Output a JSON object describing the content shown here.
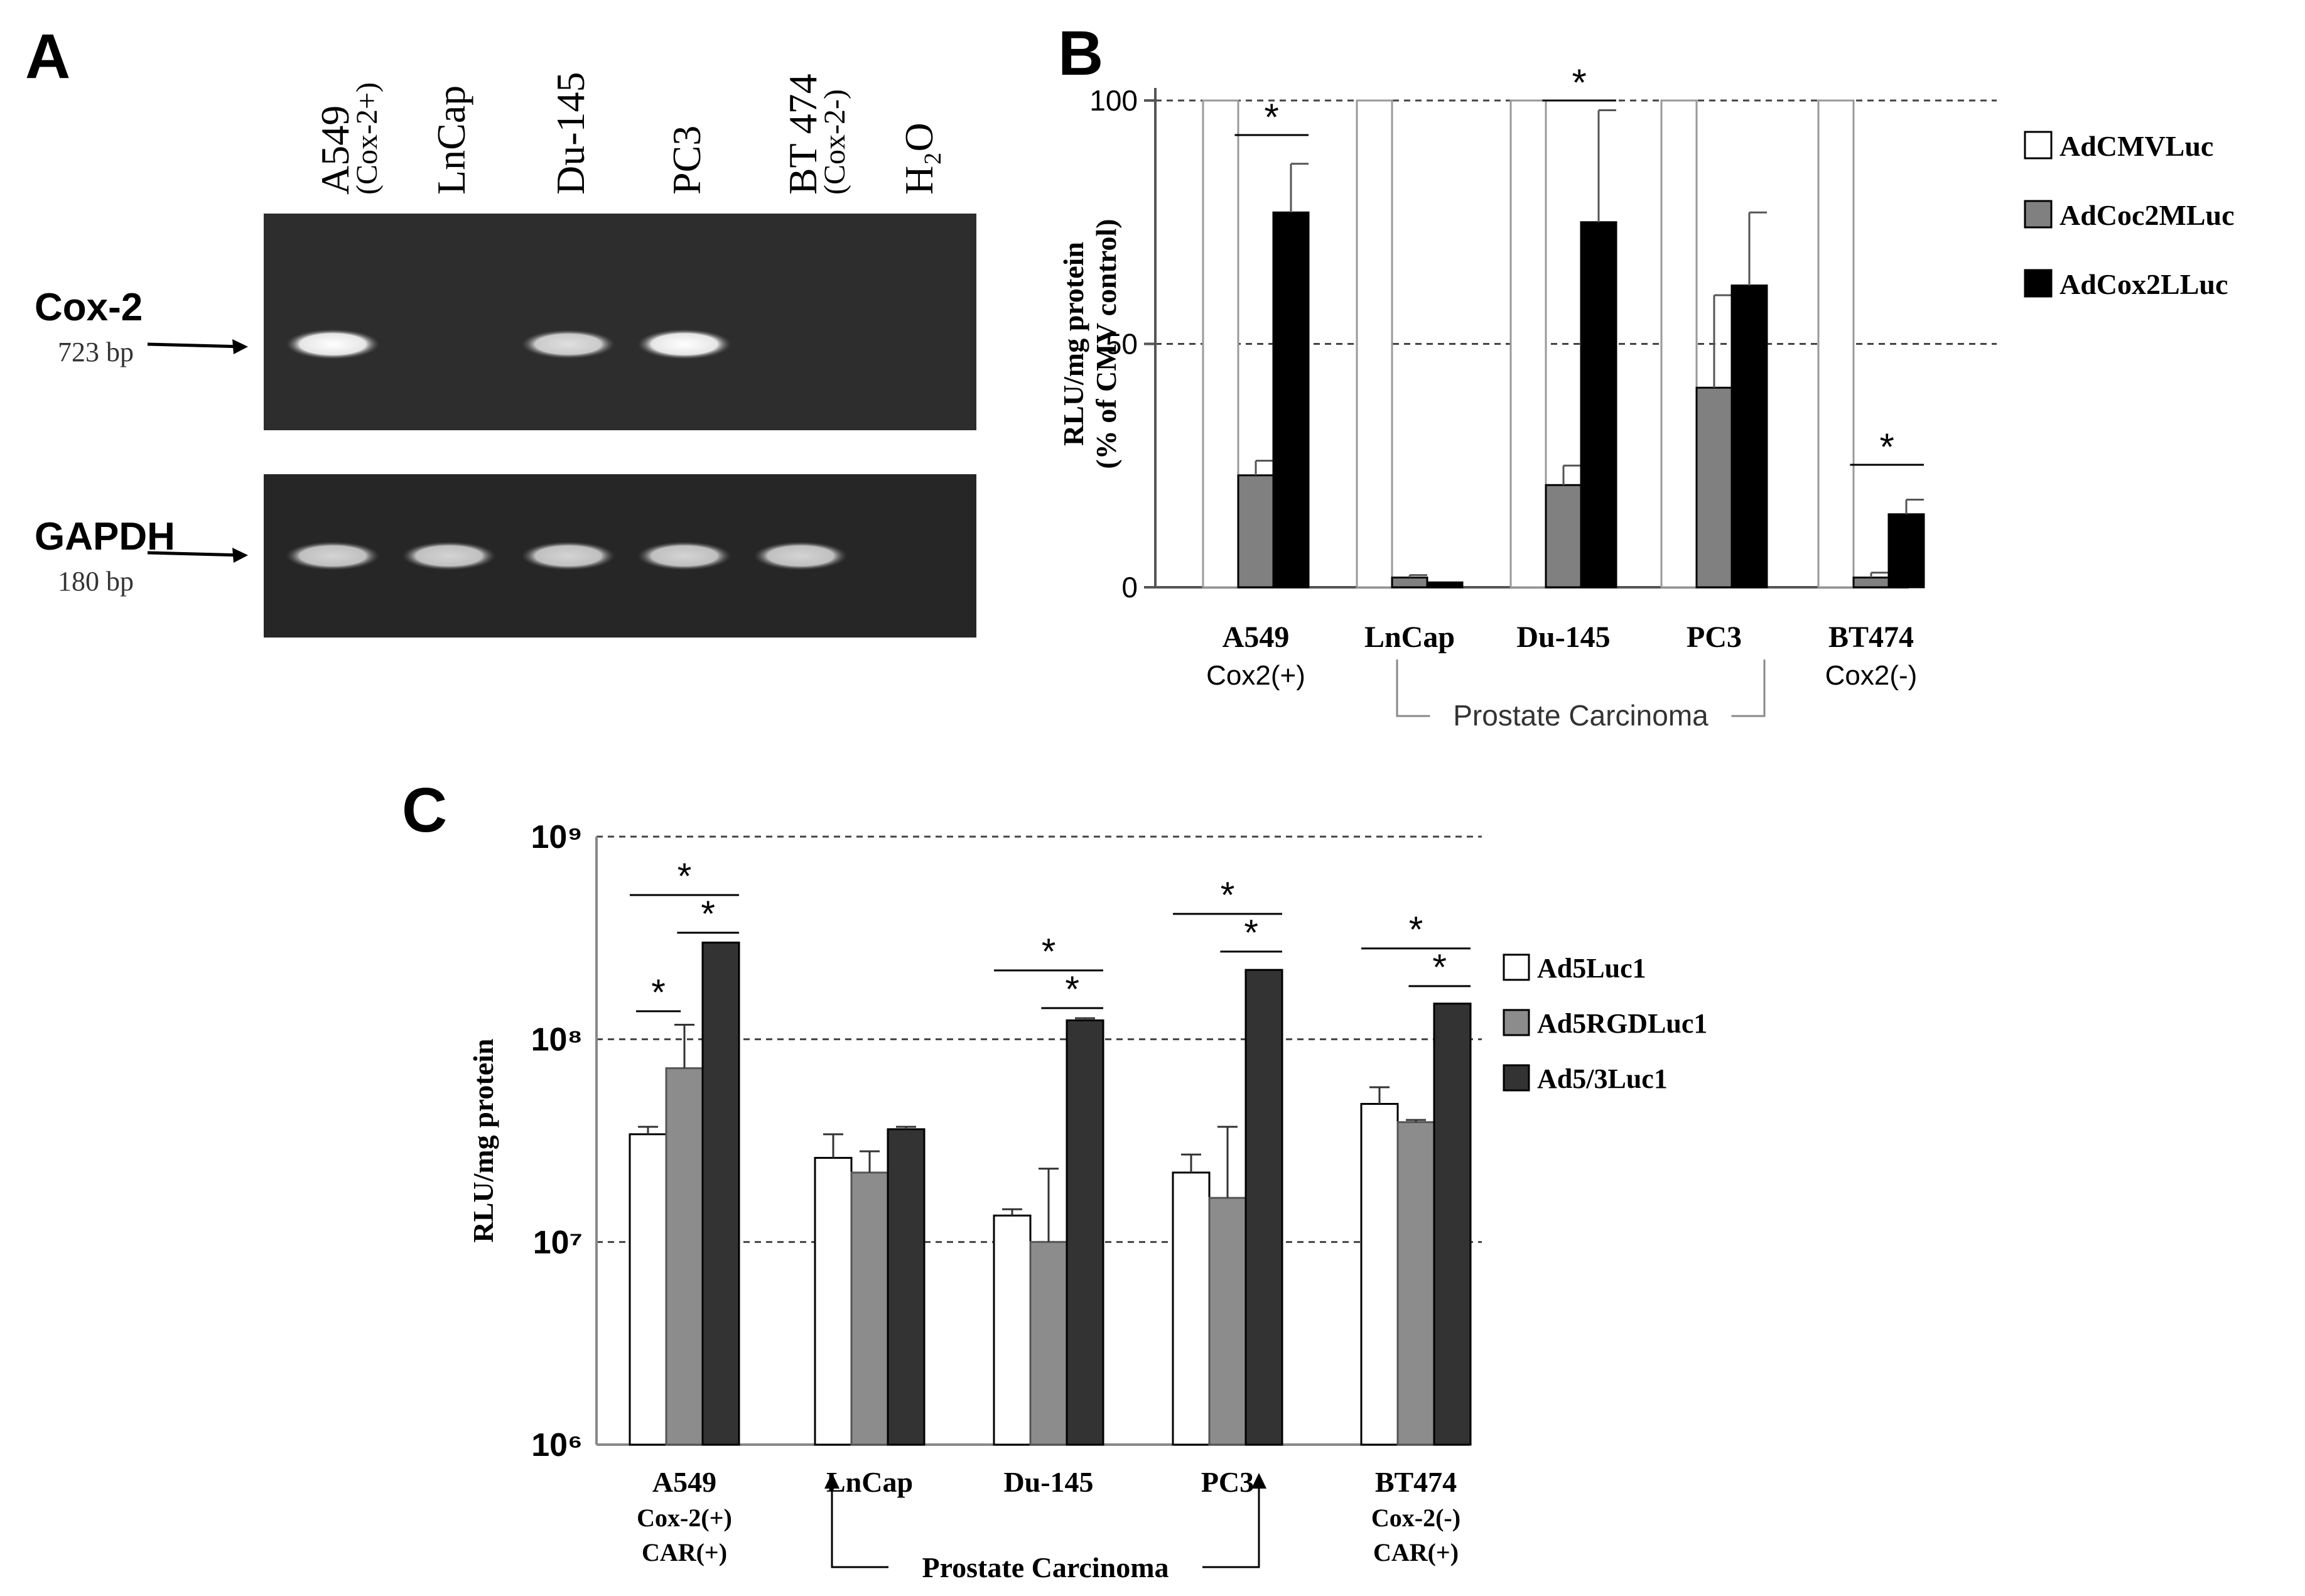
{
  "panels": {
    "a": {
      "letter": "A"
    },
    "b": {
      "letter": "B"
    },
    "c": {
      "letter": "C"
    }
  },
  "gel": {
    "lanes": [
      {
        "name": "A549",
        "sub": "(Cox-2+)"
      },
      {
        "name": "LnCap",
        "sub": ""
      },
      {
        "name": "Du-145",
        "sub": ""
      },
      {
        "name": "PC3",
        "sub": ""
      },
      {
        "name": "BT 474",
        "sub": "(Cox-2-)"
      },
      {
        "name": "H₂O",
        "sub": ""
      }
    ],
    "rows": [
      {
        "gene": "Cox-2",
        "size": "723 bp",
        "bands": [
          1,
          0,
          0.85,
          1,
          0,
          0
        ]
      },
      {
        "gene": "GAPDH",
        "size": "180 bp",
        "bands": [
          0.8,
          0.8,
          0.8,
          0.8,
          0.8,
          0
        ]
      }
    ]
  },
  "chart_data": [
    {
      "type": "bar",
      "panel": "B",
      "ylabel": "RLU/mg protein\n(% of CMV control)",
      "ylim": [
        0,
        100
      ],
      "yticks": [
        "0",
        "50",
        "100"
      ],
      "categories": [
        "A549",
        "LnCap",
        "Du-145",
        "PC3",
        "BT474"
      ],
      "category_sublabels": [
        "Cox2(+)",
        "",
        "",
        "",
        "Cox2(-)"
      ],
      "group_label": "Prostate Carcinoma",
      "series": [
        {
          "name": "AdCMVLuc",
          "color": "#ffffff",
          "values": [
            100,
            100,
            100,
            100,
            100
          ],
          "errors": [
            0,
            0,
            0,
            0,
            0
          ]
        },
        {
          "name": "AdCoc2MLuc",
          "color": "#808080",
          "values": [
            23,
            2,
            21,
            41,
            2
          ],
          "errors": [
            3,
            0.5,
            4,
            19,
            1
          ]
        },
        {
          "name": "AdCox2LLuc",
          "color": "#000000",
          "values": [
            77,
            1,
            75,
            62,
            15
          ],
          "errors": [
            10,
            0,
            23,
            15,
            3
          ]
        }
      ],
      "significance": [
        {
          "category": "A549",
          "label": "*"
        },
        {
          "category": "Du-145",
          "label": "*"
        },
        {
          "category": "BT474",
          "label": "*"
        }
      ],
      "legend_position": "right"
    },
    {
      "type": "bar",
      "panel": "C",
      "ylabel": "RLU/mg protein",
      "yscale": "log",
      "ylim": [
        1000000,
        1000000000
      ],
      "yticks": [
        "10⁶",
        "10⁷",
        "10⁸",
        "10⁹"
      ],
      "categories": [
        "A549",
        "LnCap",
        "Du-145",
        "PC3",
        "BT474"
      ],
      "category_sublabels": [
        [
          "Cox-2(+)",
          "CAR(+)"
        ],
        [],
        [],
        [],
        [
          "Cox-2(-)",
          "CAR(+)"
        ]
      ],
      "group_label": "Prostate Carcinoma",
      "series": [
        {
          "name": "Ad5Luc1",
          "color": "#ffffff",
          "values": [
            34000000,
            26000000,
            13500000,
            22000000,
            48000000
          ],
          "errors_hi": [
            37000000,
            34000000,
            14500000,
            27000000,
            58000000
          ]
        },
        {
          "name": "Ad5RGDLuc1",
          "color": "#8c8c8c",
          "values": [
            72000000,
            22000000,
            10000000,
            16500000,
            39000000
          ],
          "errors_hi": [
            118000000,
            28000000,
            23000000,
            37000000,
            40000000
          ]
        },
        {
          "name": "Ad5/3Luc1",
          "color": "#333333",
          "values": [
            300000000,
            36000000,
            124000000,
            220000000,
            150000000
          ],
          "errors_hi": [
            300000000,
            37000000,
            127000000,
            220000000,
            150000000
          ]
        }
      ],
      "significance": [
        {
          "category": "A549",
          "label": "*"
        },
        {
          "category": "Du-145",
          "label": "*"
        },
        {
          "category": "PC3",
          "label": "*"
        },
        {
          "category": "BT474",
          "label": "*"
        }
      ],
      "legend_position": "right"
    }
  ]
}
